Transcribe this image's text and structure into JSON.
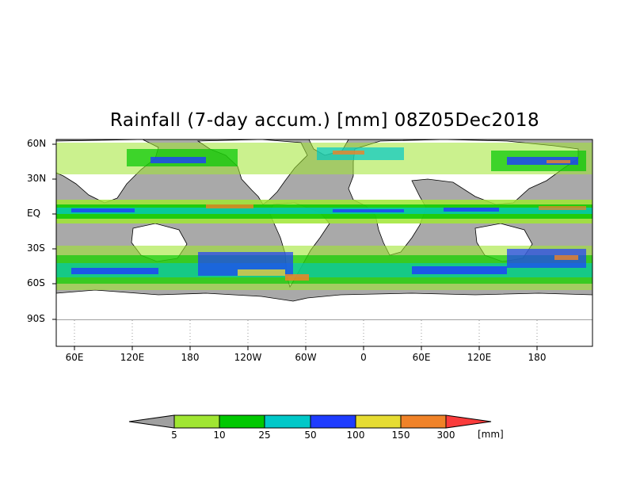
{
  "title": "Rainfall (7-day accum.) [mm] 08Z05Dec2018",
  "lat_labels": [
    "60N",
    "30N",
    "EQ",
    "30S",
    "60S",
    "90S"
  ],
  "lon_labels": [
    "60E",
    "120E",
    "180",
    "120W",
    "60W",
    "0",
    "60E",
    "120E",
    "180"
  ],
  "colorbar": {
    "labels": [
      "5",
      "10",
      "25",
      "50",
      "100",
      "150",
      "300"
    ],
    "unit": "[mm]",
    "colors": [
      "#a0a0a0",
      "#a0e632",
      "#00c800",
      "#00c8c8",
      "#1e3cff",
      "#e6dc32",
      "#f08228",
      "#fa3c3c"
    ]
  },
  "colors": {
    "ocean": "#a9a9a9",
    "land": "#ffffff",
    "coastline": "#000000"
  }
}
